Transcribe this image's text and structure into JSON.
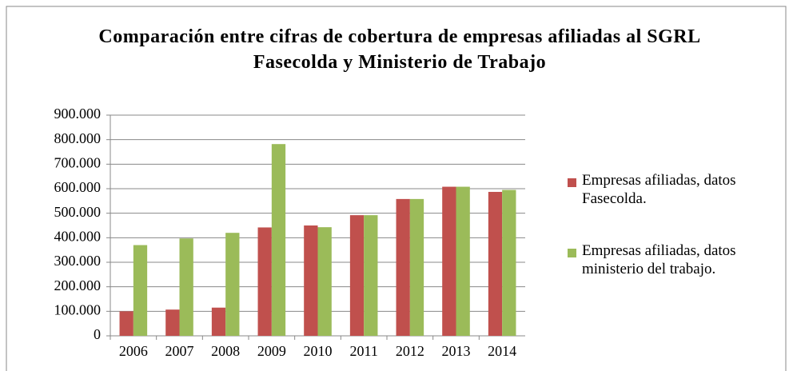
{
  "chart_data": {
    "type": "bar",
    "title": "Comparación entre cifras de cobertura de empresas afiliadas al SGRL Fasecolda y Ministerio de Trabajo",
    "categories": [
      "2006",
      "2007",
      "2008",
      "2009",
      "2010",
      "2011",
      "2012",
      "2013",
      "2014"
    ],
    "series": [
      {
        "name": "Empresas afiliadas, datos Fasecolda.",
        "color": "#c0504d",
        "values": [
          100000,
          107000,
          115000,
          442000,
          450000,
          492000,
          558000,
          608000,
          587000
        ]
      },
      {
        "name": "Empresas afiliadas, datos ministerio del trabajo.",
        "color": "#9bbb59",
        "values": [
          370000,
          397000,
          420000,
          782000,
          443000,
          492000,
          558000,
          608000,
          595000
        ]
      }
    ],
    "ylim": [
      0,
      900000
    ],
    "yticks": [
      0,
      {
        "value": 100000,
        "label": "100.000"
      },
      {
        "value": 200000,
        "label": "200.000"
      },
      {
        "value": 300000,
        "label": "300.000"
      },
      {
        "value": 400000,
        "label": "400.000"
      },
      {
        "value": 500000,
        "label": "500.000"
      },
      {
        "value": 600000,
        "label": "600.000"
      },
      {
        "value": 700000,
        "label": "700.000"
      },
      {
        "value": 800000,
        "label": "800.000"
      },
      {
        "value": 900000,
        "label": "900.000"
      }
    ],
    "grid": true,
    "legend": "right"
  }
}
